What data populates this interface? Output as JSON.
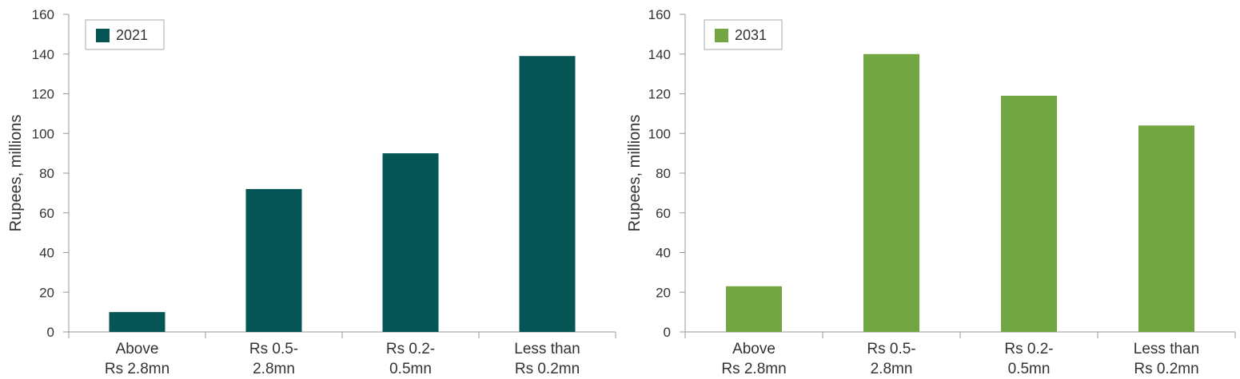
{
  "chart_data": [
    {
      "type": "bar",
      "categories": [
        "Above Rs 2.8mn",
        "Rs 0.5-2.8mn",
        "Rs 0.2-0.5mn",
        "Less than Rs 0.2mn"
      ],
      "category_lines": [
        [
          "Above",
          "Rs 2.8mn"
        ],
        [
          "Rs 0.5-",
          "2.8mn"
        ],
        [
          "Rs 0.2-",
          "0.5mn"
        ],
        [
          "Less than",
          "Rs 0.2mn"
        ]
      ],
      "series": [
        {
          "name": "2021",
          "values": [
            10,
            72,
            90,
            139
          ],
          "color": "#055555"
        }
      ],
      "title": "",
      "xlabel": "",
      "ylabel": "Rupees, millions",
      "ylim": [
        0,
        160
      ],
      "yticks": [
        0,
        20,
        40,
        60,
        80,
        100,
        120,
        140,
        160
      ],
      "grid": false,
      "legend": "top-left"
    },
    {
      "type": "bar",
      "categories": [
        "Above Rs 2.8mn",
        "Rs 0.5-2.8mn",
        "Rs 0.2-0.5mn",
        "Less than Rs 0.2mn"
      ],
      "category_lines": [
        [
          "Above",
          "Rs 2.8mn"
        ],
        [
          "Rs 0.5-",
          "2.8mn"
        ],
        [
          "Rs 0.2-",
          "0.5mn"
        ],
        [
          "Less than",
          "Rs 0.2mn"
        ]
      ],
      "series": [
        {
          "name": "2031",
          "values": [
            23,
            140,
            119,
            104
          ],
          "color": "#72A642"
        }
      ],
      "title": "",
      "xlabel": "",
      "ylabel": "Rupees, millions",
      "ylim": [
        0,
        160
      ],
      "yticks": [
        0,
        20,
        40,
        60,
        80,
        100,
        120,
        140,
        160
      ],
      "grid": false,
      "legend": "top-left"
    }
  ]
}
